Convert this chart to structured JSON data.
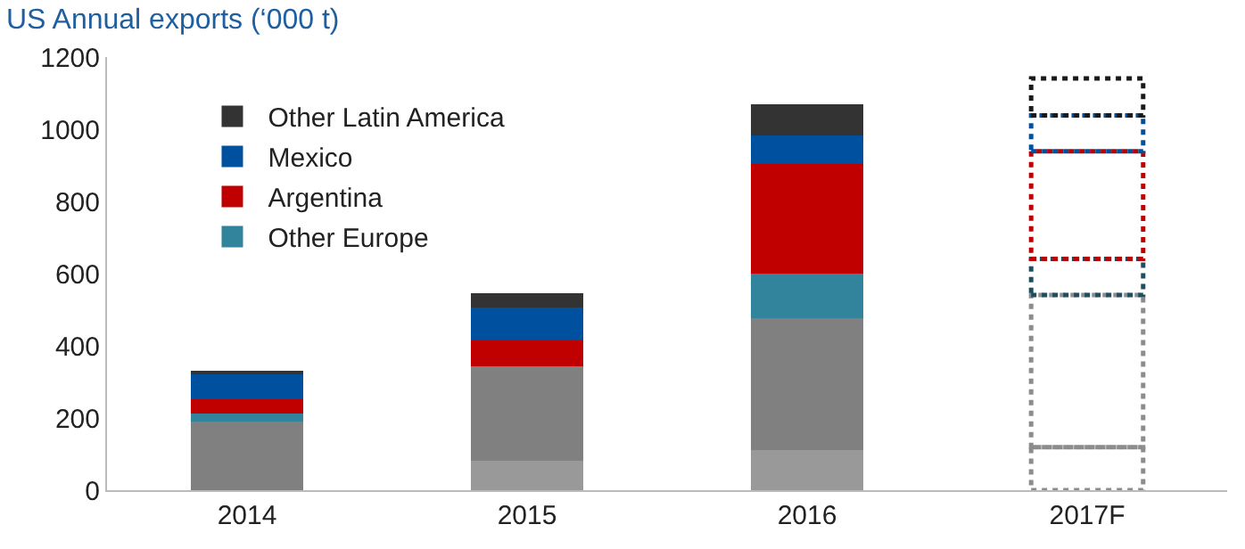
{
  "chart_data": {
    "type": "bar",
    "title": "US Annual exports (‘000 t)",
    "stacked": true,
    "categories": [
      "2014",
      "2015",
      "2016",
      "2017F"
    ],
    "series": [
      {
        "color": "#999999",
        "values": [
          0,
          81,
          110,
          null
        ]
      },
      {
        "color": "#808080",
        "values": [
          191,
          263,
          367,
          null
        ]
      },
      {
        "name": "Other Europe",
        "color": "#31849b",
        "values": [
          22,
          0,
          123,
          null
        ]
      },
      {
        "name": "Argentina",
        "color": "#c00000",
        "values": [
          39,
          72,
          303,
          null
        ]
      },
      {
        "name": "Mexico",
        "color": "#0050a0",
        "values": [
          70,
          89,
          79,
          null
        ]
      },
      {
        "name": "Other Latin America",
        "color": "#333333",
        "values": [
          8,
          41,
          86,
          null
        ]
      },
      {
        "color": "#8c8c8c",
        "line_style": "dotted",
        "values": [
          null,
          null,
          null,
          119
        ]
      },
      {
        "color": "#8c8c8c",
        "line_style": "dotted",
        "values": [
          null,
          null,
          null,
          422
        ]
      },
      {
        "color": "#1f4e5f",
        "line_style": "dotted",
        "values": [
          null,
          null,
          null,
          100
        ]
      },
      {
        "color": "#c00000",
        "line_style": "dotted",
        "values": [
          null,
          null,
          null,
          298
        ]
      },
      {
        "color": "#0050a0",
        "line_style": "dotted",
        "values": [
          null,
          null,
          null,
          99
        ]
      },
      {
        "color": "#1a1a1a",
        "line_style": "dotted",
        "values": [
          null,
          null,
          null,
          103
        ]
      }
    ],
    "ylim": [
      0,
      1200
    ],
    "yticks": [
      0,
      200,
      400,
      600,
      800,
      1000,
      1200
    ],
    "legend": "top left"
  }
}
